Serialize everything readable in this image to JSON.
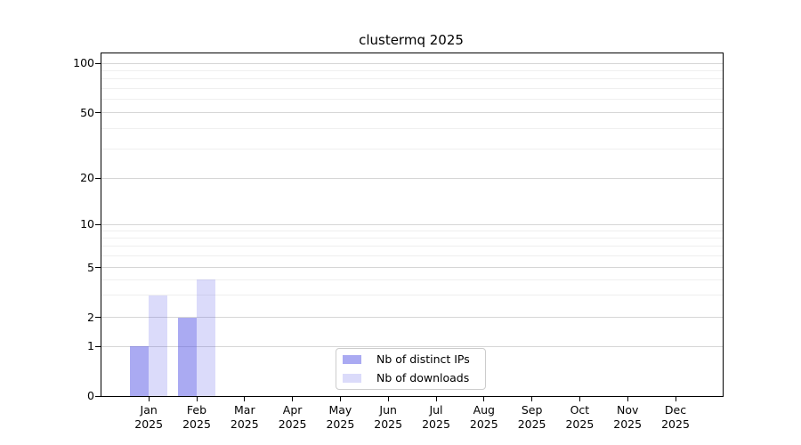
{
  "chart_data": {
    "type": "bar",
    "title": "clustermq 2025",
    "x_categories": [
      "Jan",
      "Feb",
      "Mar",
      "Apr",
      "May",
      "Jun",
      "Jul",
      "Aug",
      "Sep",
      "Oct",
      "Nov",
      "Dec"
    ],
    "x_year": "2025",
    "xlabel": "",
    "ylabel": "",
    "y_scale": "pseudo-log with 0 baseline",
    "y_ticks": [
      0,
      1,
      2,
      5,
      10,
      20,
      50,
      100
    ],
    "y_minor_gridlines": [
      3,
      4,
      6,
      7,
      8,
      9,
      30,
      40,
      60,
      70,
      80,
      90
    ],
    "ylim": [
      0,
      110
    ],
    "grid": "horizontal major and minor, on",
    "legend_position": "bottom center inside plot",
    "series": [
      {
        "name": "Nb of distinct IPs",
        "color": "rgba(85,85,230,0.5)",
        "solid_color": "#aaaaf2",
        "values": [
          1,
          2,
          0,
          0,
          0,
          0,
          0,
          0,
          0,
          0,
          0,
          0
        ]
      },
      {
        "name": "Nb of downloads",
        "color": "rgba(85,85,230,0.21)",
        "solid_color": "#dbdbf8",
        "values": [
          3,
          4,
          0,
          0,
          0,
          0,
          0,
          0,
          0,
          0,
          0,
          0
        ]
      }
    ],
    "colors": {
      "axis": "#000000",
      "grid_major": "#d6d6d6",
      "grid_minor": "#efefef",
      "legend_border": "#cccccc",
      "background": "#ffffff"
    }
  }
}
